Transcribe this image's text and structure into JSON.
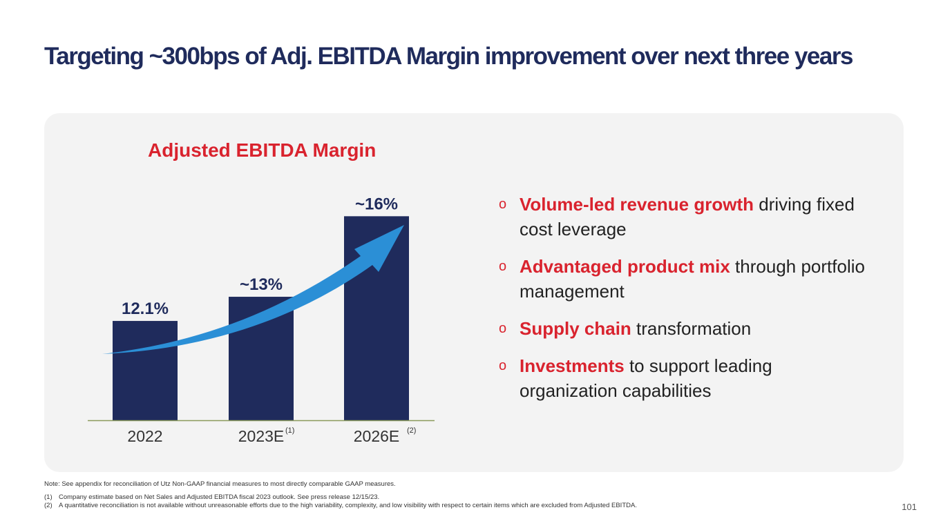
{
  "slide": {
    "title": "Targeting ~300bps of Adj. EBITDA Margin improvement over next three years",
    "page_number": "101"
  },
  "chart_data": {
    "type": "bar",
    "title": "Adjusted EBITDA Margin",
    "categories": [
      "2022",
      "2023E",
      "2026E"
    ],
    "category_superscripts": [
      "",
      "(1)",
      "(2)"
    ],
    "values": [
      12.1,
      13,
      16
    ],
    "data_labels": [
      "12.1%",
      "~13%",
      "~16%"
    ],
    "ylim": [
      8.4,
      16.6
    ],
    "xlabel": "",
    "ylabel": "",
    "grid": false,
    "annotation": "upward trend arrow",
    "colors": {
      "bar": "#1f2b5c",
      "arrow": "#2b8fd6",
      "axis": "#8a9a5b",
      "title": "#d9232e"
    }
  },
  "bullets": [
    {
      "highlight": "Volume-led revenue growth",
      "text": " driving fixed cost leverage"
    },
    {
      "highlight": "Advantaged product mix",
      "text": " through portfolio management"
    },
    {
      "highlight": "Supply chain",
      "text": " transformation"
    },
    {
      "highlight": "Investments",
      "text": " to support leading organization capabilities"
    }
  ],
  "bullet_marker": "o",
  "note": "Note: See appendix for reconciliation of Utz Non-GAAP financial measures to most directly comparable GAAP measures.",
  "footnotes": [
    {
      "num": "(1)",
      "text": "Company estimate based on Net Sales and Adjusted EBITDA fiscal 2023 outlook. See press release 12/15/23."
    },
    {
      "num": "(2)",
      "text": "A quantitative reconciliation is not available without unreasonable efforts due to the high variability, complexity, and low visibility with respect to certain items which are excluded from Adjusted EBITDA."
    }
  ]
}
